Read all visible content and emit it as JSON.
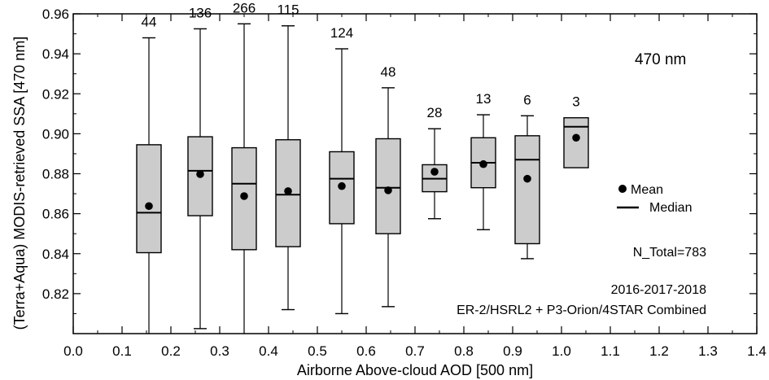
{
  "chart_data": {
    "type": "box",
    "xlabel": "Airborne Above-cloud AOD [500 nm]",
    "ylabel": "(Terra+Aqua) MODIS-retrieved SSA [470 nm]",
    "xlim": [
      0.0,
      1.4
    ],
    "ylim": [
      0.8,
      0.96
    ],
    "x_ticks": [
      "0.0",
      "0.1",
      "0.2",
      "0.3",
      "0.4",
      "0.5",
      "0.6",
      "0.7",
      "0.8",
      "0.9",
      "1.0",
      "1.1",
      "1.2",
      "1.3",
      "1.4"
    ],
    "y_ticks": [
      "0.82",
      "0.84",
      "0.86",
      "0.88",
      "0.90",
      "0.92",
      "0.94",
      "0.96"
    ],
    "grid": false,
    "boxes": [
      {
        "x": 0.155,
        "whisker_low": 0.8,
        "q1": 0.8405,
        "median": 0.8605,
        "q3": 0.8945,
        "whisker_high": 0.948,
        "mean": 0.8638,
        "count": "44"
      },
      {
        "x": 0.26,
        "whisker_low": 0.8025,
        "q1": 0.859,
        "median": 0.8815,
        "q3": 0.8985,
        "whisker_high": 0.9525,
        "mean": 0.8798,
        "count": "136"
      },
      {
        "x": 0.35,
        "whisker_low": 0.8,
        "q1": 0.842,
        "median": 0.875,
        "q3": 0.893,
        "whisker_high": 0.955,
        "mean": 0.8688,
        "count": "266"
      },
      {
        "x": 0.44,
        "whisker_low": 0.812,
        "q1": 0.8435,
        "median": 0.8695,
        "q3": 0.897,
        "whisker_high": 0.954,
        "mean": 0.8713,
        "count": "115"
      },
      {
        "x": 0.55,
        "whisker_low": 0.81,
        "q1": 0.855,
        "median": 0.8775,
        "q3": 0.891,
        "whisker_high": 0.9425,
        "mean": 0.8738,
        "count": "124"
      },
      {
        "x": 0.645,
        "whisker_low": 0.8135,
        "q1": 0.85,
        "median": 0.873,
        "q3": 0.8975,
        "whisker_high": 0.923,
        "mean": 0.8717,
        "count": "48"
      },
      {
        "x": 0.74,
        "whisker_low": 0.8575,
        "q1": 0.871,
        "median": 0.8775,
        "q3": 0.8845,
        "whisker_high": 0.9025,
        "mean": 0.881,
        "count": "28"
      },
      {
        "x": 0.84,
        "whisker_low": 0.852,
        "q1": 0.873,
        "median": 0.8855,
        "q3": 0.898,
        "whisker_high": 0.9095,
        "mean": 0.8848,
        "count": "13"
      },
      {
        "x": 0.93,
        "whisker_low": 0.8375,
        "q1": 0.845,
        "median": 0.887,
        "q3": 0.899,
        "whisker_high": 0.909,
        "mean": 0.8775,
        "count": "6"
      },
      {
        "x": 1.03,
        "whisker_low": 0.883,
        "q1": 0.883,
        "median": 0.9035,
        "q3": 0.908,
        "whisker_high": 0.908,
        "mean": 0.898,
        "count": "3"
      }
    ],
    "box_width": 0.05,
    "box_color": "#cccccc",
    "legend": {
      "mean": "Mean",
      "median": "Median",
      "placement": "right"
    },
    "annotations": {
      "wavelength": "470 nm",
      "n_total": "N_Total=783",
      "years": "2016-2017-2018",
      "source": "ER-2/HSRL2 + P3-Orion/4STAR Combined"
    }
  }
}
